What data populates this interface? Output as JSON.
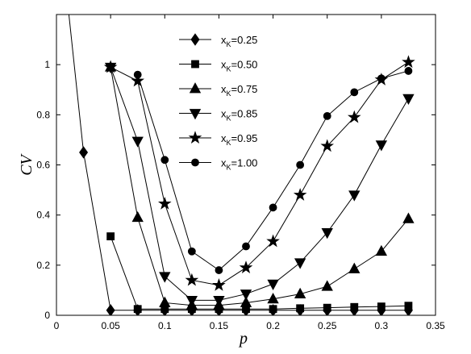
{
  "chart_data": {
    "type": "line",
    "xlabel": "p",
    "ylabel": "CV",
    "xlim": [
      0,
      0.35
    ],
    "ylim": [
      0,
      1.2
    ],
    "x_ticks": [
      "0",
      "0.05",
      "0.1",
      "0.15",
      "0.2",
      "0.25",
      "0.3",
      "0.35"
    ],
    "y_ticks": [
      "0",
      "0.2",
      "0.4",
      "0.6",
      "0.8",
      "1"
    ],
    "grid": false,
    "legend_position": "top-center",
    "series": [
      {
        "name": "x_K=0.25",
        "legend_main": "x",
        "legend_sub": "K",
        "legend_value": "=0.25",
        "marker": "diamond",
        "x": [
          0.01,
          0.025,
          0.05,
          0.075,
          0.1,
          0.125,
          0.15,
          0.175,
          0.2,
          0.225,
          0.25,
          0.275,
          0.3,
          0.325
        ],
        "y": [
          1.26,
          0.65,
          0.02,
          0.02,
          0.02,
          0.02,
          0.02,
          0.02,
          0.02,
          0.02,
          0.02,
          0.02,
          0.02,
          0.02
        ],
        "marker_x_start": 0.025
      },
      {
        "name": "x_K=0.50",
        "legend_main": "x",
        "legend_sub": "K",
        "legend_value": "=0.50",
        "marker": "square",
        "x": [
          0.05,
          0.075,
          0.1,
          0.125,
          0.15,
          0.175,
          0.2,
          0.225,
          0.25,
          0.275,
          0.3,
          0.325
        ],
        "y": [
          0.315,
          0.025,
          0.025,
          0.025,
          0.025,
          0.025,
          0.025,
          0.028,
          0.03,
          0.033,
          0.035,
          0.038
        ]
      },
      {
        "name": "x_K=0.75",
        "legend_main": "x",
        "legend_sub": "K",
        "legend_value": "=0.75",
        "marker": "triangle-up",
        "x": [
          0.05,
          0.075,
          0.1,
          0.125,
          0.15,
          0.175,
          0.2,
          0.225,
          0.25,
          0.275,
          0.3,
          0.325
        ],
        "y": [
          0.99,
          0.39,
          0.05,
          0.04,
          0.04,
          0.05,
          0.065,
          0.085,
          0.115,
          0.185,
          0.255,
          0.385
        ]
      },
      {
        "name": "x_K=0.85",
        "legend_main": "x",
        "legend_sub": "K",
        "legend_value": "=0.85",
        "marker": "triangle-down",
        "x": [
          0.05,
          0.075,
          0.1,
          0.125,
          0.15,
          0.175,
          0.2,
          0.225,
          0.25,
          0.275,
          0.3,
          0.325
        ],
        "y": [
          0.99,
          0.695,
          0.155,
          0.06,
          0.06,
          0.085,
          0.125,
          0.21,
          0.33,
          0.48,
          0.68,
          0.865
        ]
      },
      {
        "name": "x_K=0.95",
        "legend_main": "x",
        "legend_sub": "K",
        "legend_value": "=0.95",
        "marker": "star",
        "x": [
          0.05,
          0.075,
          0.1,
          0.125,
          0.15,
          0.175,
          0.2,
          0.225,
          0.25,
          0.275,
          0.3,
          0.325
        ],
        "y": [
          0.99,
          0.935,
          0.445,
          0.14,
          0.12,
          0.19,
          0.295,
          0.48,
          0.675,
          0.79,
          0.94,
          1.01
        ]
      },
      {
        "name": "x_K=1.00",
        "legend_main": "x",
        "legend_sub": "K",
        "legend_value": "=1.00",
        "marker": "circle",
        "x": [
          0.075,
          0.1,
          0.125,
          0.15,
          0.175,
          0.2,
          0.225,
          0.25,
          0.275,
          0.3,
          0.325
        ],
        "y": [
          0.96,
          0.62,
          0.255,
          0.18,
          0.275,
          0.43,
          0.6,
          0.795,
          0.89,
          0.945,
          0.975
        ]
      }
    ]
  }
}
